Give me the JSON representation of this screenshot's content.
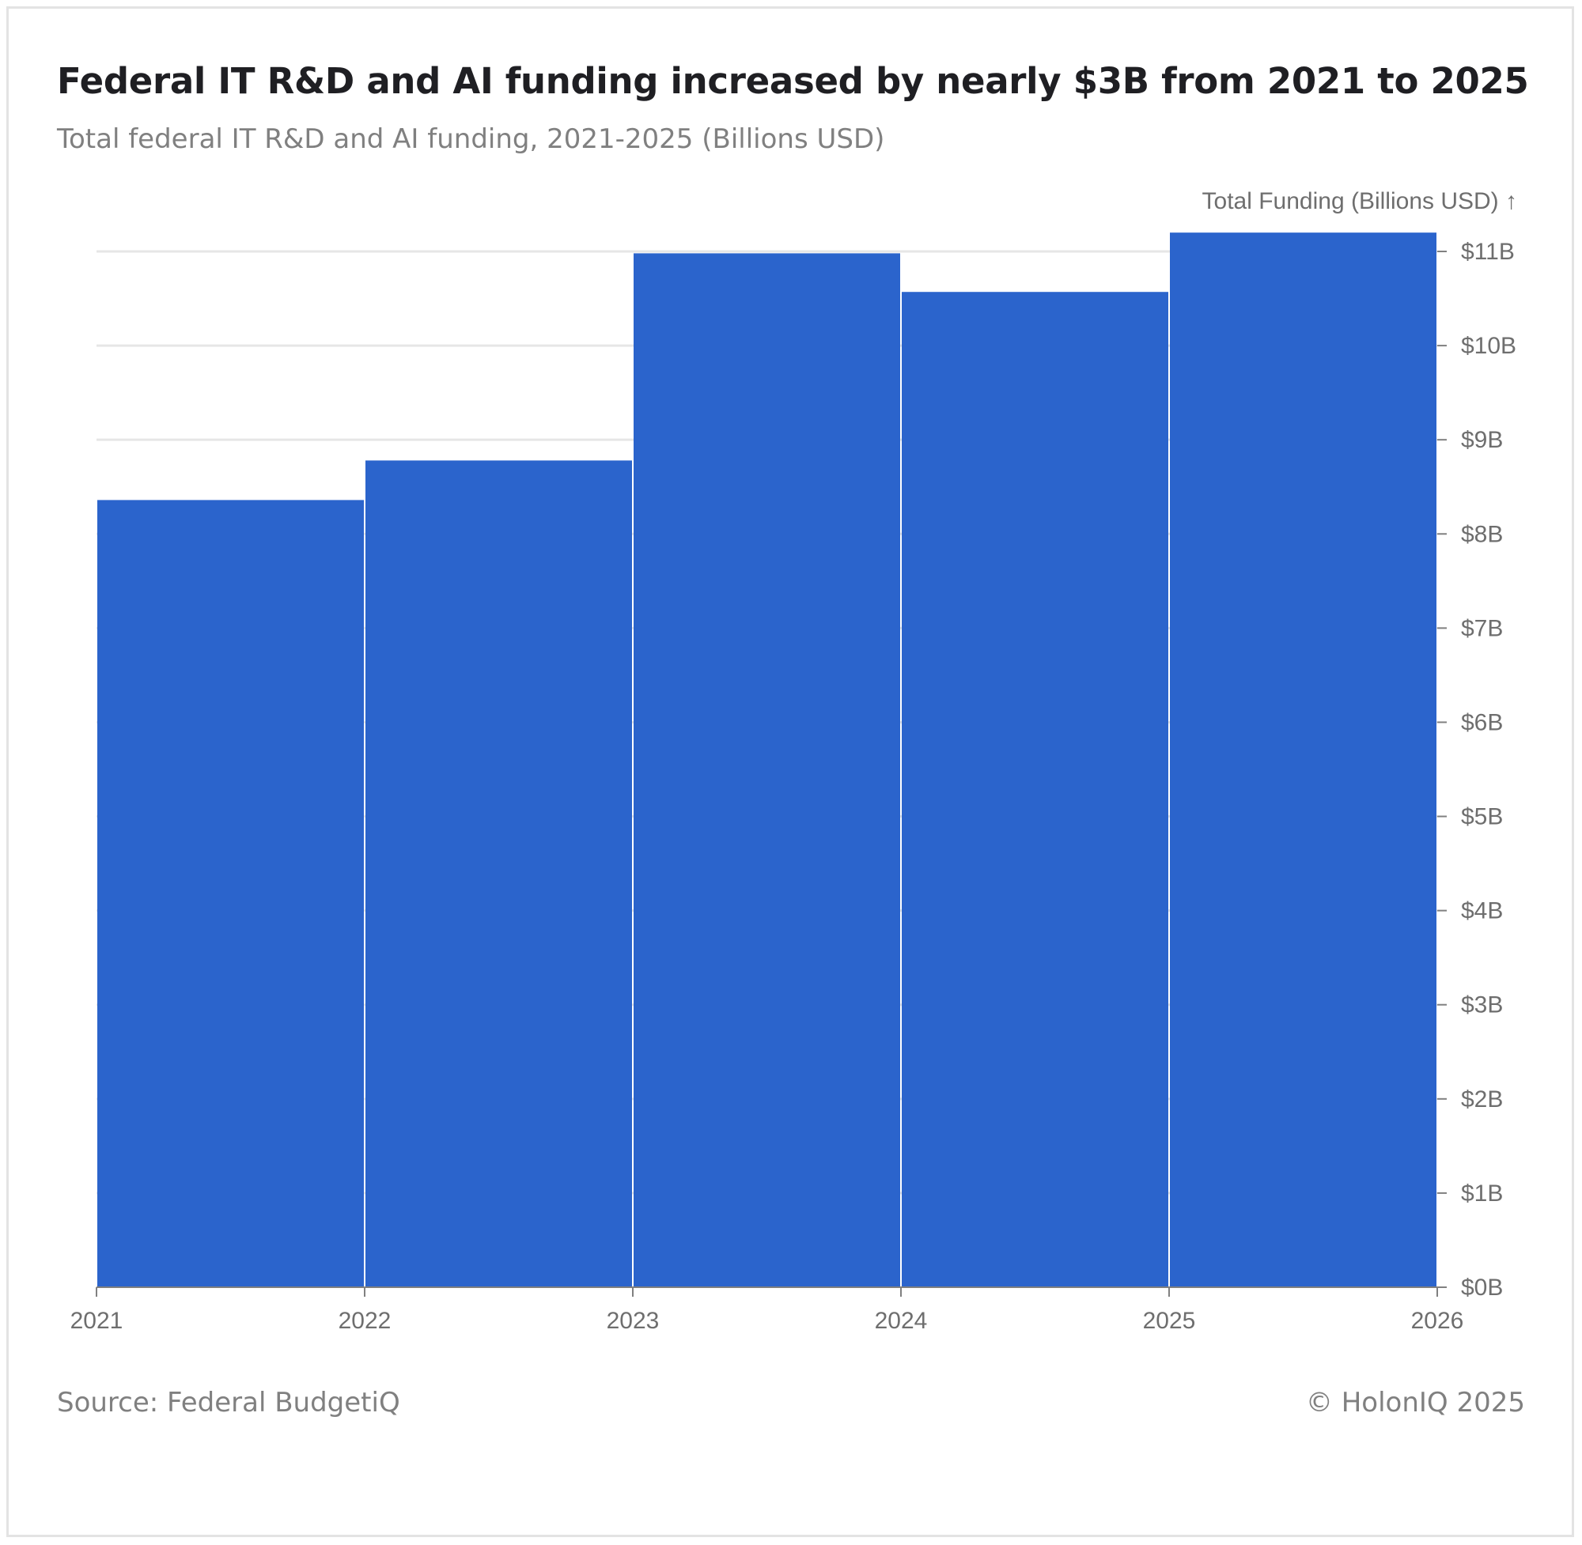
{
  "header": {
    "title": "Federal IT R&D and AI funding increased by nearly $3B from 2021 to 2025",
    "subtitle": "Total federal IT R&D and AI funding, 2021-2025 (Billions USD)"
  },
  "footer": {
    "source": "Source: Federal BudgetiQ",
    "copyright": "© HolonIQ 2025"
  },
  "chart_data": {
    "type": "bar",
    "title": "Federal IT R&D and AI funding increased by nearly $3B from 2021 to 2025",
    "subtitle": "Total federal IT R&D and AI funding, 2021-2025 (Billions USD)",
    "xlabel": "",
    "ylabel": "Total Funding (Billions USD) ↑",
    "bins": [
      {
        "start": 2021,
        "end": 2022,
        "value": 8.36
      },
      {
        "start": 2022,
        "end": 2023,
        "value": 8.78
      },
      {
        "start": 2023,
        "end": 2024,
        "value": 10.98
      },
      {
        "start": 2024,
        "end": 2025,
        "value": 10.57
      },
      {
        "start": 2025,
        "end": 2026,
        "value": 11.2
      }
    ],
    "x_ticks": [
      2021,
      2022,
      2023,
      2024,
      2025,
      2026
    ],
    "xlim": [
      2021,
      2026
    ],
    "y_ticks": [
      0,
      1,
      2,
      3,
      4,
      5,
      6,
      7,
      8,
      9,
      10,
      11
    ],
    "y_tick_labels": [
      "$0B",
      "$1B",
      "$2B",
      "$3B",
      "$4B",
      "$5B",
      "$6B",
      "$7B",
      "$8B",
      "$9B",
      "$10B",
      "$11B"
    ],
    "ylim": [
      0,
      11
    ],
    "y_axis_position": "right",
    "grid": true,
    "bar_color": "#2b64cc",
    "grid_color": "#e6e6e6",
    "axis_color": "#808080",
    "text_color": "#6e6e6e"
  }
}
